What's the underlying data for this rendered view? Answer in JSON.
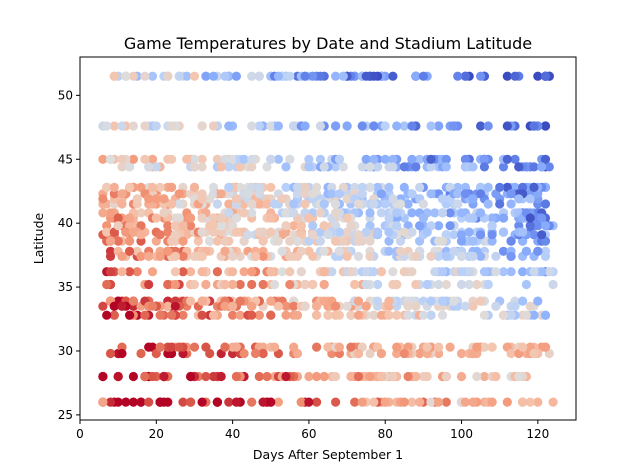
{
  "chart_data": {
    "type": "scatter",
    "title": "Game Temperatures by Date and Stadium Latitude",
    "xlabel": "Days After September 1",
    "ylabel": "Latitude",
    "xlim": [
      0,
      130
    ],
    "ylim": [
      24.6,
      53.0
    ],
    "x_ticks": [
      0,
      20,
      40,
      60,
      80,
      100,
      120
    ],
    "y_ticks": [
      25,
      30,
      35,
      40,
      45,
      50
    ],
    "grid": false,
    "legend": "none",
    "colormap": "coolwarm",
    "color_scale_note": "marker colour encodes game temperature: red = warm, blue = cold",
    "stadium_latitudes": [
      26.0,
      28.0,
      29.8,
      30.3,
      32.8,
      33.5,
      33.9,
      35.2,
      36.2,
      37.4,
      37.8,
      38.6,
      39.1,
      39.3,
      39.8,
      40.4,
      40.8,
      41.5,
      41.9,
      42.3,
      42.8,
      44.4,
      45.0,
      47.6,
      51.5
    ],
    "x_range_observed": [
      6,
      124
    ],
    "sample_points": [
      {
        "x": 6,
        "y": 26.0,
        "c": 0.72
      },
      {
        "x": 25,
        "y": 33.5,
        "c": 0.98
      },
      {
        "x": 30,
        "y": 51.5,
        "c": 0.62
      },
      {
        "x": 45,
        "y": 47.6,
        "c": 0.48
      },
      {
        "x": 55,
        "y": 51.5,
        "c": 0.4
      },
      {
        "x": 69,
        "y": 51.5,
        "c": 0.3
      },
      {
        "x": 85,
        "y": 44.4,
        "c": 0.12
      },
      {
        "x": 92,
        "y": 45.0,
        "c": 0.05
      },
      {
        "x": 110,
        "y": 42.8,
        "c": 0.1
      },
      {
        "x": 118,
        "y": 40.4,
        "c": 0.02
      },
      {
        "x": 121,
        "y": 39.1,
        "c": 0.04
      },
      {
        "x": 124,
        "y": 26.0,
        "c": 0.66
      }
    ]
  }
}
